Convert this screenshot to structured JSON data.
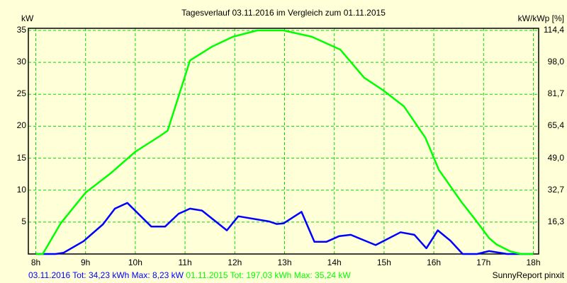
{
  "chart_data": {
    "type": "line",
    "title": "Tagesverlauf 03.11.2016 im Vergleich zum 01.11.2015",
    "ylabel": "kW",
    "ylabel_right": "kW/kWp [%]",
    "xlabel": "",
    "xlim": [
      8,
      18
    ],
    "ylim": [
      0,
      35
    ],
    "grid": true,
    "x_ticks": [
      "8h",
      "9h",
      "10h",
      "11h",
      "12h",
      "13h",
      "14h",
      "15h",
      "16h",
      "17h",
      "18h"
    ],
    "y_ticks": [
      "5",
      "10",
      "15",
      "20",
      "25",
      "30",
      "35"
    ],
    "y_ticks_right": [
      "16,3",
      "32,7",
      "49,0",
      "65,4",
      "81,7",
      "98,0",
      "114,4"
    ],
    "series": [
      {
        "name": "03.11.2016",
        "color": "#0000FF",
        "x": [
          8.0,
          8.4,
          8.56,
          8.96,
          9.35,
          9.59,
          9.84,
          10.32,
          10.6,
          10.87,
          11.1,
          11.34,
          11.84,
          12.07,
          12.69,
          12.84,
          12.98,
          13.34,
          13.6,
          13.84,
          14.1,
          14.33,
          14.83,
          15.33,
          15.61,
          15.85,
          16.08,
          16.33,
          16.58,
          16.87,
          17.11,
          17.4,
          17.47,
          18.0
        ],
        "y": [
          0,
          0,
          0.2,
          2.0,
          4.65,
          7.1,
          8.0,
          4.3,
          4.3,
          6.3,
          7.1,
          6.8,
          3.7,
          5.9,
          5.1,
          4.7,
          4.8,
          6.6,
          1.9,
          1.9,
          2.8,
          3.0,
          1.4,
          3.4,
          3.0,
          0.9,
          3.7,
          2.1,
          0,
          0,
          0.45,
          0.1,
          0,
          0
        ]
      },
      {
        "name": "01.11.2015",
        "color": "#00FF00",
        "x": [
          8.0,
          8.14,
          8.5,
          9.0,
          9.5,
          10.0,
          10.5,
          10.65,
          11.1,
          11.55,
          11.96,
          12.45,
          12.98,
          13.55,
          14.12,
          14.6,
          14.97,
          15.4,
          15.83,
          16.1,
          16.55,
          16.83,
          17.11,
          17.26,
          17.54,
          17.75,
          18.0
        ],
        "y": [
          0,
          0,
          4.8,
          9.6,
          12.6,
          16.0,
          18.5,
          19.3,
          30.3,
          32.5,
          34.0,
          35.0,
          35.0,
          34.0,
          32.0,
          27.6,
          25.7,
          23.1,
          18.2,
          13.2,
          8.2,
          5.4,
          2.5,
          1.5,
          0.4,
          0,
          0
        ]
      }
    ],
    "legend": [
      {
        "text": "03.11.2016 Tot: 34,23 kWh Max: 8,23 kW",
        "color": "#0000FF"
      },
      {
        "text": "01.11.2015 Tot: 197,03 kWh Max: 35,24 kW",
        "color": "#00FF00"
      }
    ],
    "legend_position": "bottom-left",
    "footer": "SunnyReport pinxit"
  }
}
